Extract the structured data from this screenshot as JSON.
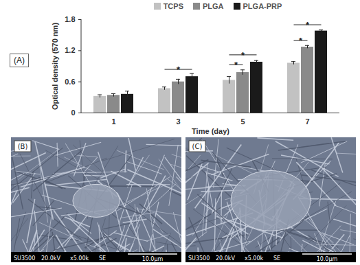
{
  "chart_data": {
    "type": "bar",
    "panel_label": "(A)",
    "x_label": "Time (day)",
    "y_label": "Optical density (570 nm)",
    "categories": [
      1,
      3,
      5,
      7
    ],
    "ylim": [
      0,
      1.8
    ],
    "yticks": [
      0,
      0.6,
      1.2,
      1.8
    ],
    "grid": false,
    "legend": "top",
    "series": [
      {
        "name": "TCPS",
        "color": "#c2c2c2",
        "values": [
          0.32,
          0.47,
          0.63,
          0.96
        ],
        "errors": [
          0.03,
          0.03,
          0.07,
          0.03
        ]
      },
      {
        "name": "PLGA",
        "color": "#8a8a8a",
        "values": [
          0.34,
          0.6,
          0.78,
          1.27
        ],
        "errors": [
          0.03,
          0.05,
          0.05,
          0.03
        ]
      },
      {
        "name": "PLGA-PRP",
        "color": "#1a1a1a",
        "values": [
          0.36,
          0.7,
          0.98,
          1.58
        ],
        "errors": [
          0.06,
          0.06,
          0.03,
          0.02
        ]
      }
    ],
    "annotations": [
      {
        "category": 3,
        "from": "TCPS",
        "to": "PLGA-PRP",
        "y": 0.84,
        "text": "*"
      },
      {
        "category": 5,
        "from": "TCPS",
        "to": "PLGA",
        "y": 0.93,
        "text": "*"
      },
      {
        "category": 5,
        "from": "TCPS",
        "to": "PLGA-PRP",
        "y": 1.12,
        "text": "*"
      },
      {
        "category": 7,
        "from": "TCPS",
        "to": "PLGA",
        "y": 1.4,
        "text": "*"
      },
      {
        "category": 7,
        "from": "TCPS",
        "to": "PLGA-PRP",
        "y": 1.7,
        "text": "*"
      }
    ]
  },
  "images": [
    {
      "label": "(B)",
      "info": [
        "SU3500",
        "20.0kV",
        "x5.00k",
        "SE"
      ],
      "scale_bar": "10.0μm"
    },
    {
      "label": "(C)",
      "info": [
        "SU3500",
        "20.0kV",
        "x5.00k",
        "SE"
      ],
      "scale_bar": "10.0μm"
    }
  ]
}
